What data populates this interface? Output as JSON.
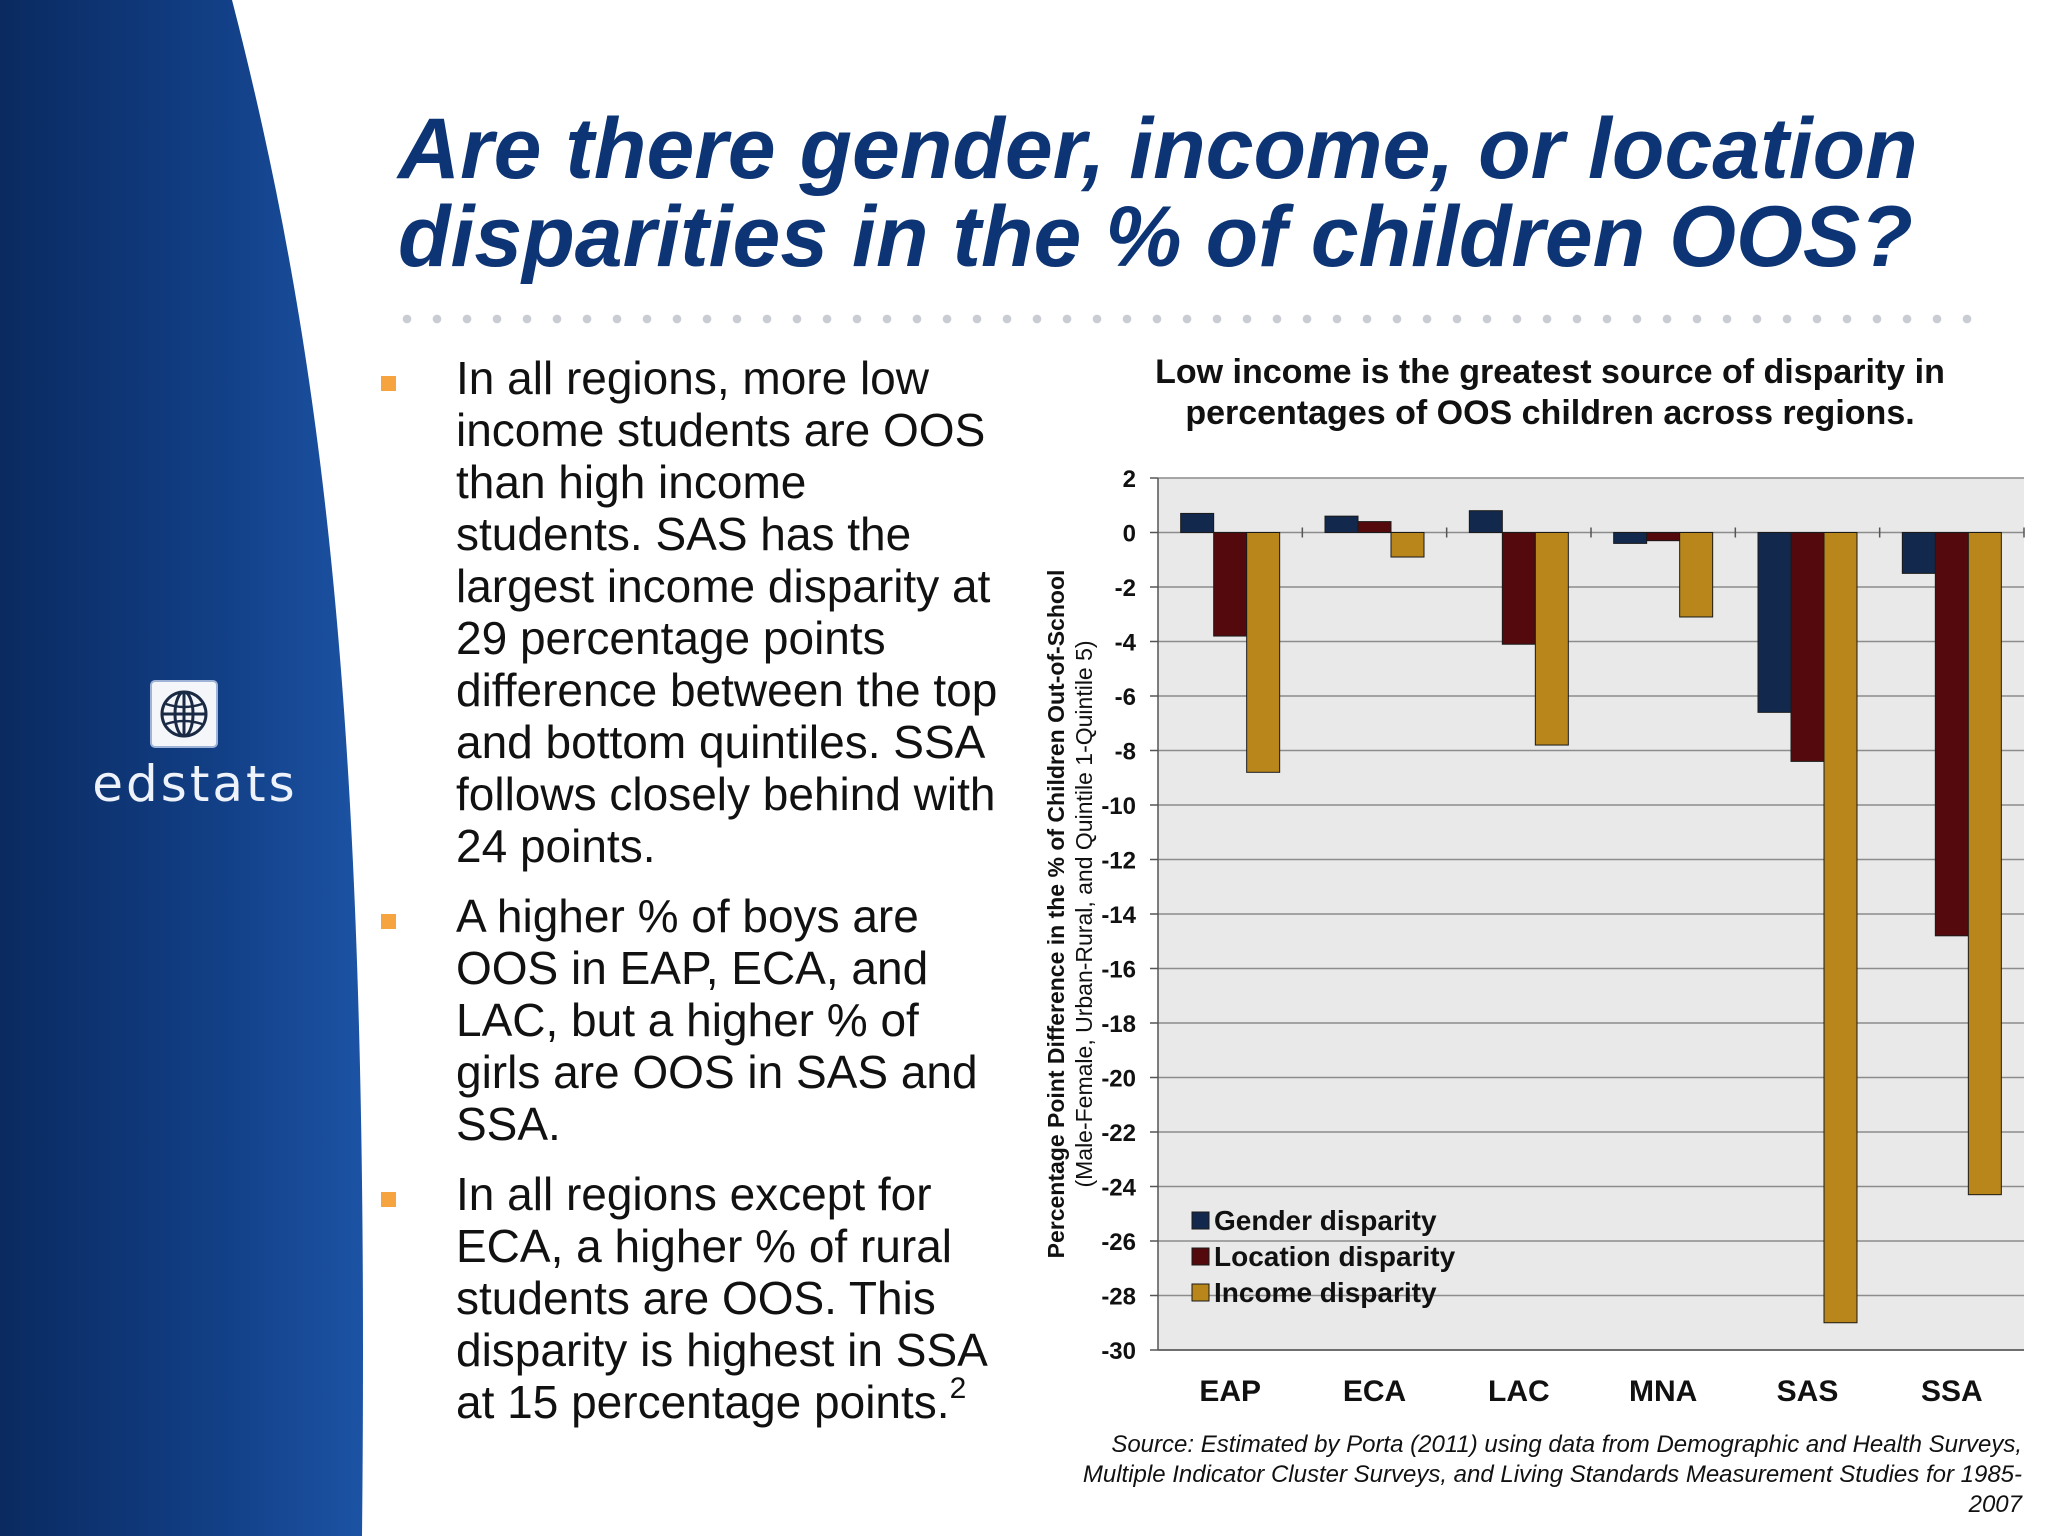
{
  "slide": {
    "title": "Are there gender, income, or location disparities in the % of children OOS?",
    "logo_text": "edstats",
    "logo_icon": "globe-icon",
    "bullets": [
      {
        "text": "In all regions, more low income students are OOS than high income students. SAS has the largest income disparity at 29 percentage points difference between the top and bottom quintiles. SSA follows closely behind with 24 points.",
        "footnote": ""
      },
      {
        "text": "A higher % of boys are OOS in EAP, ECA, and LAC, but a higher % of girls are OOS in SAS and SSA.",
        "footnote": ""
      },
      {
        "text": "In all regions except for ECA, a higher % of rural students are OOS. This disparity is highest in SSA at 15 percentage points.",
        "footnote": "2"
      }
    ],
    "source": "Source: Estimated by Porta (2011) using data from Demographic and Health Surveys, Multiple Indicator Cluster Surveys, and Living Standards Measurement Studies for 1985-2007",
    "colors": {
      "title": "#0d3575",
      "bullet": "#f5a43f",
      "sidebar_dark": "#0a2a60",
      "sidebar_light": "#1c53a4"
    }
  },
  "chart_data": {
    "type": "bar",
    "title": "Low income is the greatest source of disparity in percentages of OOS children across regions.",
    "ylabel_line1": "Percentage Point Difference in the % of Children Out-of-School",
    "ylabel_line2": "(Male-Female,  Urban-Rural, and Quintile 1-Quintile 5)",
    "categories": [
      "EAP",
      "ECA",
      "LAC",
      "MNA",
      "SAS",
      "SSA"
    ],
    "ylim": [
      -30,
      2
    ],
    "yticks": [
      2,
      0,
      -2,
      -4,
      -6,
      -8,
      -10,
      -12,
      -14,
      -16,
      -18,
      -20,
      -22,
      -24,
      -26,
      -28,
      -30
    ],
    "grid": true,
    "legend_position": "bottom-left",
    "series": [
      {
        "name": "Gender disparity",
        "color": "#12284d",
        "values": [
          0.7,
          0.6,
          0.8,
          -0.4,
          -6.6,
          -1.5
        ]
      },
      {
        "name": "Location disparity",
        "color": "#540a0c",
        "values": [
          -3.8,
          0.4,
          -4.1,
          -0.3,
          -8.4,
          -14.8
        ]
      },
      {
        "name": "Income disparity",
        "color": "#b8861a",
        "values": [
          -8.8,
          -0.9,
          -7.8,
          -3.1,
          -29.0,
          -24.3
        ]
      }
    ]
  }
}
